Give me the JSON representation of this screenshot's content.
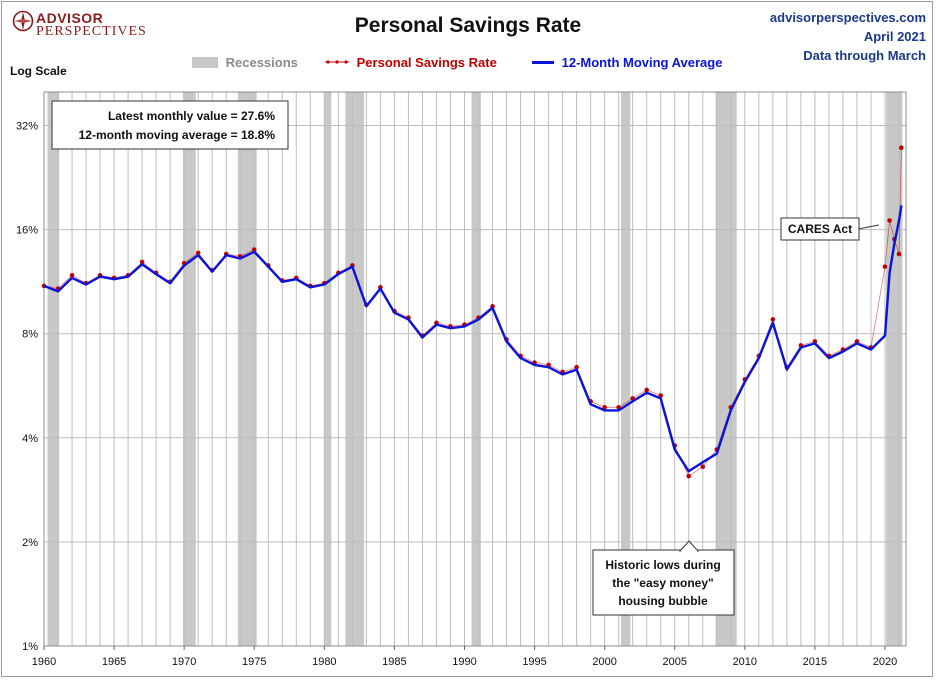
{
  "brand": {
    "line1": "ADVISOR",
    "line2": "PERSPECTIVES"
  },
  "source": {
    "site": "advisorperspectives.com",
    "date": "April 2021",
    "note": "Data through March"
  },
  "scale_label": "Log Scale",
  "colors": {
    "recession": "#c8c8c8",
    "savings": "#c00000",
    "moving_avg": "#0a14d8",
    "grid": "#bdbdbd",
    "source_text": "#1a3a8a",
    "brand": "#8b1c1c"
  },
  "chart_data": {
    "type": "line",
    "title": "Personal Savings Rate",
    "y_scale": "log2",
    "ylim": [
      1,
      40
    ],
    "xlim": [
      1960,
      2021.5
    ],
    "y_ticks": [
      1,
      2,
      4,
      8,
      16,
      32
    ],
    "y_tick_labels": [
      "1%",
      "2%",
      "4%",
      "8%",
      "16%",
      "32%"
    ],
    "x_ticks": [
      1960,
      1965,
      1970,
      1975,
      1980,
      1985,
      1990,
      1995,
      2000,
      2005,
      2010,
      2015,
      2020
    ],
    "x_tick_labels": [
      "1960",
      "1965",
      "1970",
      "1975",
      "1980",
      "1985",
      "1990",
      "1995",
      "2000",
      "2005",
      "2010",
      "2015",
      "2020"
    ],
    "grid": true,
    "legend": {
      "position": "top",
      "entries": [
        "Recessions",
        "Personal Savings Rate",
        "12-Month Moving Average"
      ]
    },
    "recessions": [
      [
        1960.25,
        1961.08
      ],
      [
        1969.92,
        1970.83
      ],
      [
        1973.83,
        1975.17
      ],
      [
        1980.0,
        1980.5
      ],
      [
        1981.5,
        1982.83
      ],
      [
        1990.5,
        1991.17
      ],
      [
        2001.17,
        2001.83
      ],
      [
        2007.92,
        2009.42
      ],
      [
        2020.08,
        2021.25
      ]
    ],
    "series": [
      {
        "name": "Personal Savings Rate",
        "kind": "monthly-dots",
        "x": [
          1960.0,
          1961.0,
          1962.0,
          1963.0,
          1964.0,
          1965.0,
          1966.0,
          1967.0,
          1968.0,
          1969.0,
          1970.0,
          1971.0,
          1972.0,
          1973.0,
          1974.0,
          1975.0,
          1976.0,
          1977.0,
          1978.0,
          1979.0,
          1980.0,
          1981.0,
          1982.0,
          1983.0,
          1984.0,
          1985.0,
          1986.0,
          1987.0,
          1988.0,
          1989.0,
          1990.0,
          1991.0,
          1992.0,
          1993.0,
          1994.0,
          1995.0,
          1996.0,
          1997.0,
          1998.0,
          1999.0,
          2000.0,
          2001.0,
          2002.0,
          2003.0,
          2004.0,
          2005.0,
          2006.0,
          2007.0,
          2008.0,
          2009.0,
          2010.0,
          2011.0,
          2012.0,
          2013.0,
          2014.0,
          2015.0,
          2016.0,
          2017.0,
          2018.0,
          2019.0,
          2020.0,
          2020.33,
          2020.67,
          2021.0,
          2021.17
        ],
        "values": [
          11.0,
          10.8,
          11.8,
          11.2,
          11.8,
          11.6,
          11.8,
          12.9,
          12.0,
          11.3,
          12.8,
          13.7,
          12.2,
          13.6,
          13.4,
          14.0,
          12.6,
          11.4,
          11.6,
          11.0,
          11.2,
          12.0,
          12.6,
          9.7,
          10.9,
          9.3,
          8.9,
          7.9,
          8.6,
          8.4,
          8.5,
          8.9,
          9.6,
          7.7,
          6.9,
          6.6,
          6.5,
          6.2,
          6.4,
          5.1,
          4.9,
          4.9,
          5.2,
          5.5,
          5.3,
          3.8,
          3.1,
          3.3,
          3.7,
          4.9,
          5.9,
          6.9,
          8.8,
          6.4,
          7.4,
          7.6,
          6.9,
          7.2,
          7.6,
          7.3,
          12.5,
          17.0,
          15.0,
          13.6,
          27.6
        ]
      },
      {
        "name": "12-Month Moving Average",
        "kind": "line",
        "x": [
          1960.0,
          1961.0,
          1962.0,
          1963.0,
          1964.0,
          1965.0,
          1966.0,
          1967.0,
          1968.0,
          1969.0,
          1970.0,
          1971.0,
          1972.0,
          1973.0,
          1974.0,
          1975.0,
          1976.0,
          1977.0,
          1978.0,
          1979.0,
          1980.0,
          1981.0,
          1982.0,
          1983.0,
          1984.0,
          1985.0,
          1986.0,
          1987.0,
          1988.0,
          1989.0,
          1990.0,
          1991.0,
          1992.0,
          1993.0,
          1994.0,
          1995.0,
          1996.0,
          1997.0,
          1998.0,
          1999.0,
          2000.0,
          2001.0,
          2002.0,
          2003.0,
          2004.0,
          2005.0,
          2006.0,
          2007.0,
          2008.0,
          2009.0,
          2010.0,
          2011.0,
          2012.0,
          2013.0,
          2014.0,
          2015.0,
          2016.0,
          2017.0,
          2018.0,
          2019.0,
          2020.0,
          2020.33,
          2020.67,
          2021.0,
          2021.17
        ],
        "values": [
          11.0,
          10.6,
          11.6,
          11.1,
          11.7,
          11.5,
          11.7,
          12.7,
          11.9,
          11.2,
          12.6,
          13.5,
          12.1,
          13.5,
          13.2,
          13.8,
          12.5,
          11.3,
          11.5,
          10.9,
          11.1,
          11.9,
          12.5,
          9.6,
          10.8,
          9.2,
          8.8,
          7.8,
          8.5,
          8.3,
          8.4,
          8.8,
          9.5,
          7.6,
          6.8,
          6.5,
          6.4,
          6.1,
          6.3,
          5.0,
          4.8,
          4.8,
          5.1,
          5.4,
          5.2,
          3.7,
          3.2,
          3.4,
          3.6,
          4.8,
          5.8,
          6.8,
          8.6,
          6.3,
          7.3,
          7.5,
          6.8,
          7.1,
          7.5,
          7.2,
          7.9,
          12.0,
          14.6,
          17.0,
          18.8
        ]
      }
    ],
    "annotations": [
      {
        "id": "latest",
        "lines": [
          "Latest monthly value = 27.6%",
          "12-month moving average = 18.8%"
        ]
      },
      {
        "id": "cares",
        "lines": [
          "CARES Act"
        ]
      },
      {
        "id": "historic",
        "lines": [
          "Historic lows during",
          "the \"easy money\"",
          "housing bubble"
        ]
      }
    ]
  }
}
